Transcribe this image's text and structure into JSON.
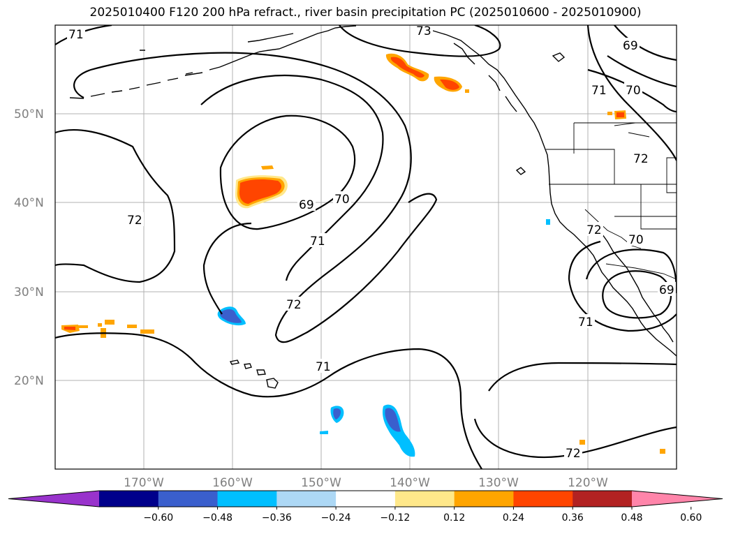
{
  "title": "2025010400 F120 200 hPa refract., river basin precipitation PC (2025010600 - 2025010900)",
  "latitude_labels": [
    "50°N",
    "40°N",
    "30°N",
    "20°N"
  ],
  "longitude_labels": [
    "170°W",
    "160°W",
    "150°W",
    "140°W",
    "130°W",
    "120°W"
  ],
  "contour_labels": [
    "71",
    "73",
    "69",
    "71",
    "70",
    "72",
    "72",
    "69",
    "70",
    "71",
    "72",
    "71",
    "72",
    "70",
    "69",
    "71",
    "72"
  ],
  "colorbar": {
    "ticks": [
      "−0.60",
      "−0.48",
      "−0.36",
      "−0.24",
      "−0.12",
      "0.12",
      "0.24",
      "0.36",
      "0.48",
      "0.60"
    ],
    "colors": [
      "#9933cc",
      "#00008b",
      "#3a5fcd",
      "#00bfff",
      "#add8f5",
      "#ffffff",
      "#ffe88a",
      "#ffa500",
      "#ff4500",
      "#b22222",
      "#ff85aa"
    ]
  },
  "fill_colors": {
    "strong_positive": "#ff4500",
    "moderate_positive": "#ffa500",
    "weak_positive": "#ffe88a",
    "strong_negative": "#3a5fcd",
    "moderate_negative": "#00bfff",
    "weak_negative": "#add8f5"
  }
}
